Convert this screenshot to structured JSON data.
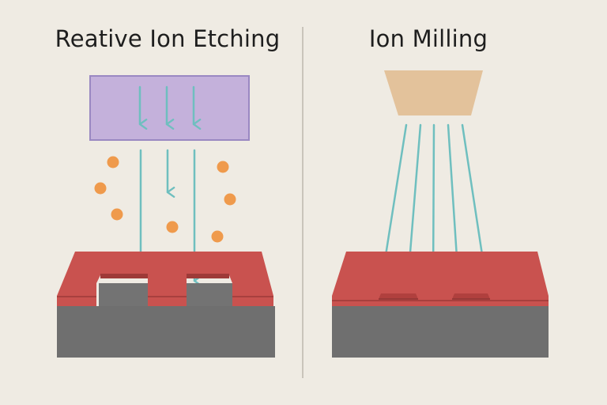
{
  "panels": {
    "left": {
      "title": "Reative Ion Etching"
    },
    "right": {
      "title": "Ion Milling"
    }
  },
  "colors": {
    "background": "#efebe3",
    "divider": "#c9c4bb",
    "mask_layer": "#c9524f",
    "mask_edge": "#9e3a38",
    "substrate": "#6f6f6f",
    "substrate_top": "#737373",
    "ion_arrow": "#6fbfbf",
    "plasma_chamber_fill": "#c4b1db",
    "plasma_chamber_border": "#9a88c2",
    "reactive_species": "#ef9a4c",
    "ion_source": "#e3c29b"
  },
  "icons": {
    "plasma_chamber": "plasma-chamber-icon",
    "ion_source": "ion-source-icon",
    "reactive_species": "reactive-species-dot-icon"
  }
}
